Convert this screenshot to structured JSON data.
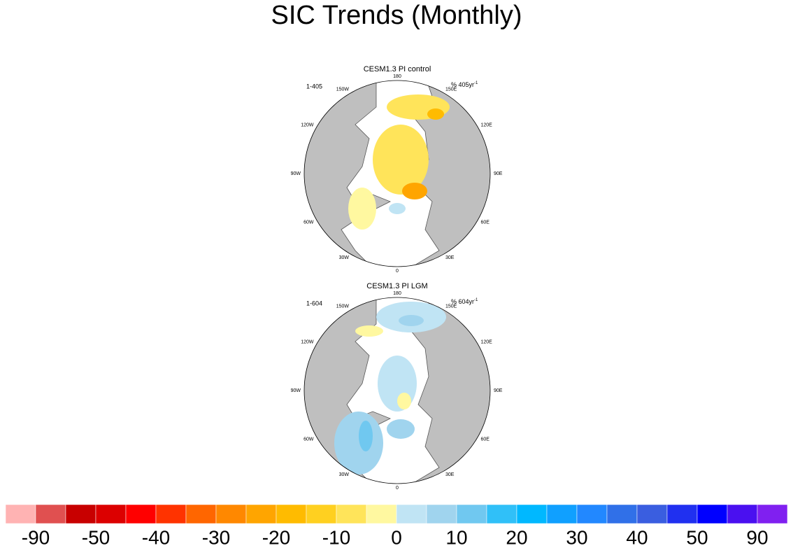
{
  "title": "SIC Trends (Monthly)",
  "lon_labels": [
    "0",
    "30E",
    "60E",
    "90E",
    "120E",
    "150E",
    "180",
    "150W",
    "120W",
    "90W",
    "60W",
    "30W"
  ],
  "panels": [
    {
      "title": "CESM1.3 PI control",
      "left_label": "1-405",
      "units": "% 405yr",
      "units_exp": "-1"
    },
    {
      "title": "CESM1.3 PI LGM",
      "left_label": "1-604",
      "units": "% 604yr",
      "units_exp": "-1"
    }
  ],
  "colorbar": {
    "colors": [
      "#ffb3b3",
      "#e05050",
      "#c80000",
      "#dc0000",
      "#ff0000",
      "#ff3300",
      "#ff6600",
      "#ff8800",
      "#ffa500",
      "#ffbb00",
      "#ffd020",
      "#ffe45a",
      "#fff8a0",
      "#c0e4f4",
      "#a0d4ee",
      "#70c8f0",
      "#30c0f8",
      "#00b8ff",
      "#10a0ff",
      "#2288ff",
      "#3070e8",
      "#3a5ee0",
      "#2030f0",
      "#0000ff",
      "#4a10f0",
      "#8020f0"
    ],
    "levels": [
      -90,
      -50,
      -40,
      -30,
      -20,
      -10,
      0,
      10,
      20,
      30,
      40,
      50,
      90
    ]
  }
}
